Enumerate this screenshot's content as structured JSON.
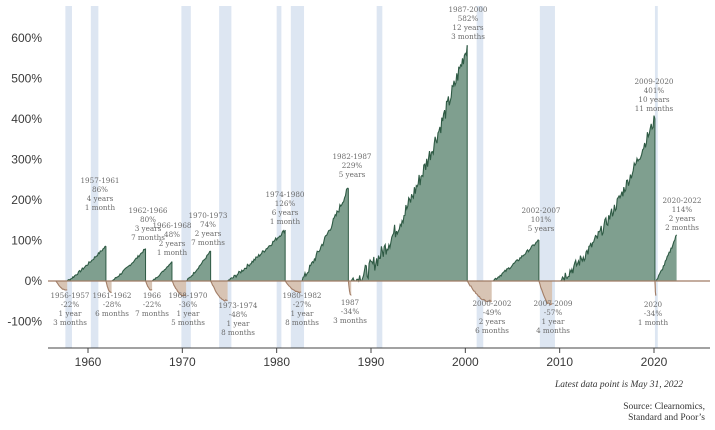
{
  "chart_data": {
    "type": "area",
    "title": "",
    "xlabel": "",
    "ylabel": "",
    "xlim": [
      1955.5,
      2023.5
    ],
    "ylim": [
      -120,
      620
    ],
    "y_ticks": [
      -100,
      0,
      100,
      200,
      300,
      400,
      500,
      600
    ],
    "y_tick_labels": [
      "-100%",
      "0%",
      "100%",
      "200%",
      "300%",
      "400%",
      "500%",
      "600%"
    ],
    "x_ticks": [
      1960,
      1970,
      1980,
      1990,
      2000,
      2010,
      2020
    ],
    "x_tick_labels": [
      "1960",
      "1970",
      "1980",
      "1990",
      "2000",
      "2010",
      "2020"
    ],
    "colors": {
      "bull": "#7f9f8f",
      "bull_line": "#2e5a44",
      "bear": "#d8c4b4",
      "bear_line": "#a27d66",
      "recession": "#dde6f2",
      "zero": "#a07c66"
    },
    "recessions": [
      [
        1957.6,
        1958.3
      ],
      [
        1960.3,
        1961.1
      ],
      [
        1969.9,
        1970.9
      ],
      [
        1973.9,
        1975.2
      ],
      [
        1980.0,
        1980.5
      ],
      [
        1981.5,
        1982.9
      ],
      [
        1990.6,
        1991.2
      ],
      [
        2001.2,
        2001.9
      ],
      [
        2007.9,
        2009.5
      ],
      [
        2020.1,
        2020.4
      ]
    ],
    "periods": [
      {
        "kind": "bear",
        "start": 1956.6,
        "end": 1957.8,
        "value": -22,
        "label": [
          "1956-1957",
          "-22%",
          "1 year",
          "3 months"
        ]
      },
      {
        "kind": "bull",
        "start": 1957.8,
        "end": 1961.9,
        "value": 86,
        "label": [
          "1957-1961",
          "86%",
          "4 years",
          "1 month"
        ]
      },
      {
        "kind": "bear",
        "start": 1961.9,
        "end": 1962.5,
        "value": -28,
        "label": [
          "1961-1962",
          "-28%",
          "6 months"
        ]
      },
      {
        "kind": "bull",
        "start": 1962.5,
        "end": 1966.1,
        "value": 80,
        "label": [
          "1962-1966",
          "80%",
          "3 years",
          "7 months"
        ]
      },
      {
        "kind": "bear",
        "start": 1966.1,
        "end": 1966.8,
        "value": -22,
        "label": [
          "1966",
          "-22%",
          "7 months"
        ]
      },
      {
        "kind": "bull",
        "start": 1966.8,
        "end": 1968.9,
        "value": 48,
        "label": [
          "1966-1968",
          "48%",
          "2 years",
          "1 month"
        ]
      },
      {
        "kind": "bear",
        "start": 1968.9,
        "end": 1970.4,
        "value": -36,
        "label": [
          "1968-1970",
          "-36%",
          "1 year",
          "5 months"
        ]
      },
      {
        "kind": "bull",
        "start": 1970.4,
        "end": 1973.0,
        "value": 74,
        "label": [
          "1970-1973",
          "74%",
          "2 years",
          "7 months"
        ]
      },
      {
        "kind": "bear",
        "start": 1973.0,
        "end": 1974.8,
        "value": -48,
        "label": [
          "1973-1974",
          "-48%",
          "1 year",
          "8 months"
        ]
      },
      {
        "kind": "bull",
        "start": 1974.8,
        "end": 1980.9,
        "value": 126,
        "label": [
          "1974-1980",
          "126%",
          "6 years",
          "1 month"
        ]
      },
      {
        "kind": "bear",
        "start": 1980.9,
        "end": 1982.6,
        "value": -27,
        "label": [
          "1980-1982",
          "-27%",
          "1 year",
          "8 months"
        ]
      },
      {
        "kind": "bull",
        "start": 1982.6,
        "end": 1987.6,
        "value": 229,
        "label": [
          "1982-1987",
          "229%",
          "5 years"
        ]
      },
      {
        "kind": "bear",
        "start": 1987.6,
        "end": 1987.9,
        "value": -34,
        "label": [
          "1987",
          "-34%",
          "3 months"
        ]
      },
      {
        "kind": "bull",
        "start": 1987.9,
        "end": 2000.2,
        "value": 582,
        "label": [
          "1987-2000",
          "582%",
          "12 years",
          "3 months"
        ]
      },
      {
        "kind": "bear",
        "start": 2000.2,
        "end": 2002.8,
        "value": -49,
        "label": [
          "2000-2002",
          "-49%",
          "2 years",
          "6 months"
        ]
      },
      {
        "kind": "bull",
        "start": 2002.8,
        "end": 2007.8,
        "value": 101,
        "label": [
          "2002-2007",
          "101%",
          "5 years"
        ]
      },
      {
        "kind": "bear",
        "start": 2007.8,
        "end": 2009.2,
        "value": -57,
        "label": [
          "2007-2009",
          "-57%",
          "1 year",
          "4 months"
        ]
      },
      {
        "kind": "bull",
        "start": 2009.2,
        "end": 2020.1,
        "value": 401,
        "label": [
          "2009-2020",
          "401%",
          "10 years",
          "11 months"
        ]
      },
      {
        "kind": "bear",
        "start": 2020.1,
        "end": 2020.2,
        "value": -34,
        "label": [
          "2020",
          "-34%",
          "1 month"
        ]
      },
      {
        "kind": "bull",
        "start": 2020.2,
        "end": 2022.4,
        "value": 114,
        "label": [
          "2020-2022",
          "114%",
          "2 years",
          "2 months"
        ]
      }
    ]
  },
  "footer": {
    "latest": "Latest data point is May 31, 2022",
    "source_line1": "Source: Clearnomics,",
    "source_line2": "Standard and Poor’s"
  }
}
